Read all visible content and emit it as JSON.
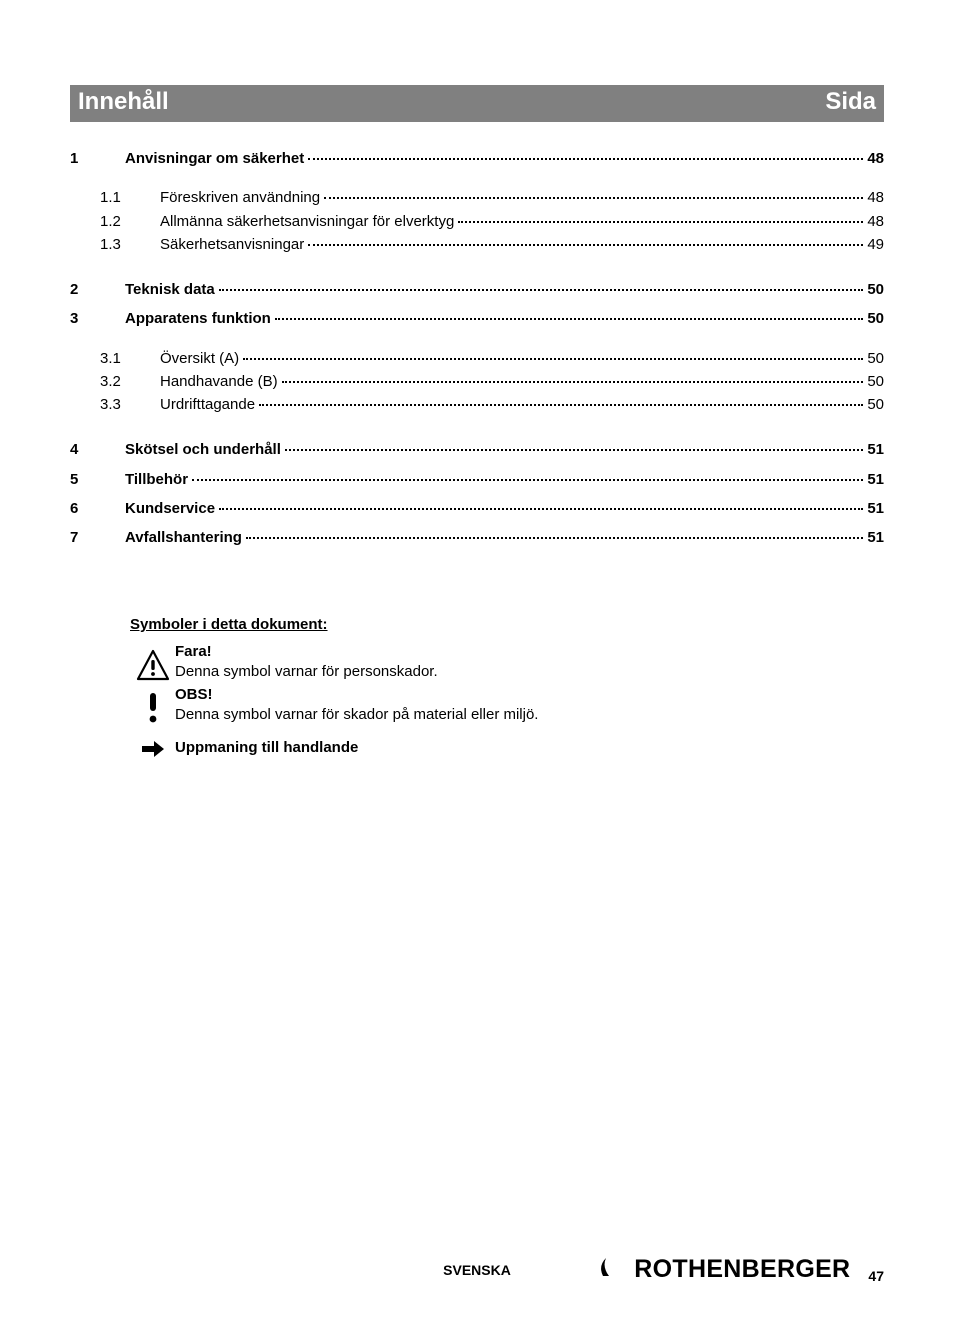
{
  "header": {
    "left": "Innehåll",
    "right": "Sida"
  },
  "toc": [
    {
      "type": "main",
      "num": "1",
      "text": "Anvisningar om säkerhet",
      "page": "48"
    },
    {
      "type": "gap"
    },
    {
      "type": "sub",
      "num": "1.1",
      "text": "Föreskriven användning",
      "page": "48"
    },
    {
      "type": "sub",
      "num": "1.2",
      "text": "Allmänna säkerhetsanvisningar för elverktyg",
      "page": "48"
    },
    {
      "type": "sub",
      "num": "1.3",
      "text": "Säkerhetsanvisningar",
      "page": "49"
    },
    {
      "type": "gap"
    },
    {
      "type": "main",
      "num": "2",
      "text": "Teknisk data",
      "page": "50"
    },
    {
      "type": "main",
      "num": "3",
      "text": "Apparatens funktion",
      "page": "50"
    },
    {
      "type": "gap"
    },
    {
      "type": "sub",
      "num": "3.1",
      "text": "Översikt (A)",
      "page": "50"
    },
    {
      "type": "sub",
      "num": "3.2",
      "text": "Handhavande (B)",
      "page": "50"
    },
    {
      "type": "sub",
      "num": "3.3",
      "text": "Urdrifttagande",
      "page": "50"
    },
    {
      "type": "gap"
    },
    {
      "type": "main",
      "num": "4",
      "text": "Skötsel och underhåll",
      "page": "51"
    },
    {
      "type": "main",
      "num": "5",
      "text": "Tillbehör",
      "page": "51"
    },
    {
      "type": "main",
      "num": "6",
      "text": "Kundservice",
      "page": "51"
    },
    {
      "type": "main",
      "num": "7",
      "text": "Avfallshantering",
      "page": "51"
    }
  ],
  "symbols": {
    "title": "Symboler i detta dokument:",
    "items": [
      {
        "heading": "Fara!",
        "desc": "Denna symbol varnar för personskador."
      },
      {
        "heading": "OBS!",
        "desc": "Denna symbol varnar för skador på material eller miljö."
      },
      {
        "heading": "Uppmaning till handlande",
        "desc": ""
      }
    ]
  },
  "footer": {
    "lang": "SVENSKA",
    "brand": "ROTHENBERGER",
    "page": "47"
  },
  "colors": {
    "header_bg": "#808080",
    "header_fg": "#ffffff",
    "text": "#000000",
    "page_bg": "#ffffff"
  }
}
